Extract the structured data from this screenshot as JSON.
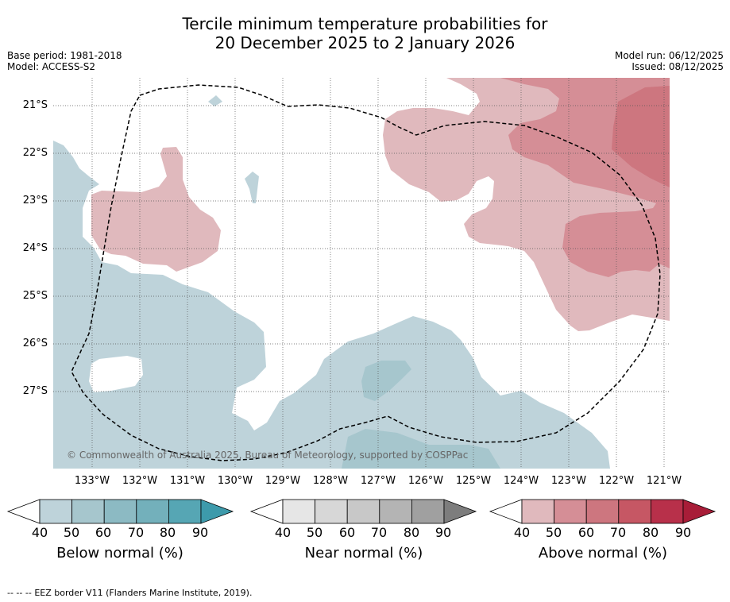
{
  "title": {
    "line1": "Tercile minimum temperature probabilities for",
    "line2": "20 December 2025 to 2 January 2026"
  },
  "meta": {
    "base_period": "Base period: 1981-2018",
    "model": "Model: ACCESS-S2",
    "model_run": "Model run: 06/12/2025",
    "issued": "Issued: 08/12/2025"
  },
  "axes": {
    "latitudes": [
      "21°S",
      "22°S",
      "23°S",
      "24°S",
      "25°S",
      "26°S",
      "27°S"
    ],
    "longitudes": [
      "133°W",
      "132°W",
      "131°W",
      "130°W",
      "129°W",
      "128°W",
      "127°W",
      "126°W",
      "125°W",
      "124°W",
      "123°W",
      "122°W",
      "121°W"
    ]
  },
  "copyright": "© Commonwealth of Australia 2025, Bureau of Meteorology, supported by COSPPac",
  "colorbars": [
    {
      "label": "Below normal (%)",
      "ticks": [
        "40",
        "50",
        "60",
        "70",
        "80",
        "90"
      ],
      "colors": [
        "#bed3da",
        "#a6c6cd",
        "#8cbac3",
        "#73b0bb",
        "#56a6b4",
        "#3d9aab"
      ]
    },
    {
      "label": "Near normal (%)",
      "ticks": [
        "40",
        "50",
        "60",
        "70",
        "80",
        "90"
      ],
      "colors": [
        "#e6e6e6",
        "#d7d7d7",
        "#c8c8c8",
        "#b4b4b4",
        "#a0a0a0",
        "#7d7d7d"
      ]
    },
    {
      "label": "Above normal (%)",
      "ticks": [
        "40",
        "50",
        "60",
        "70",
        "80",
        "90"
      ],
      "colors": [
        "#e0b9bd",
        "#d58e96",
        "#cd767f",
        "#c65764",
        "#b8304a",
        "#a81d38"
      ]
    }
  ],
  "legend": {
    "eez_dash": "-- -- --",
    "eez_text": "EEZ border V11 (Flanders Marine Institute, 2019)."
  }
}
